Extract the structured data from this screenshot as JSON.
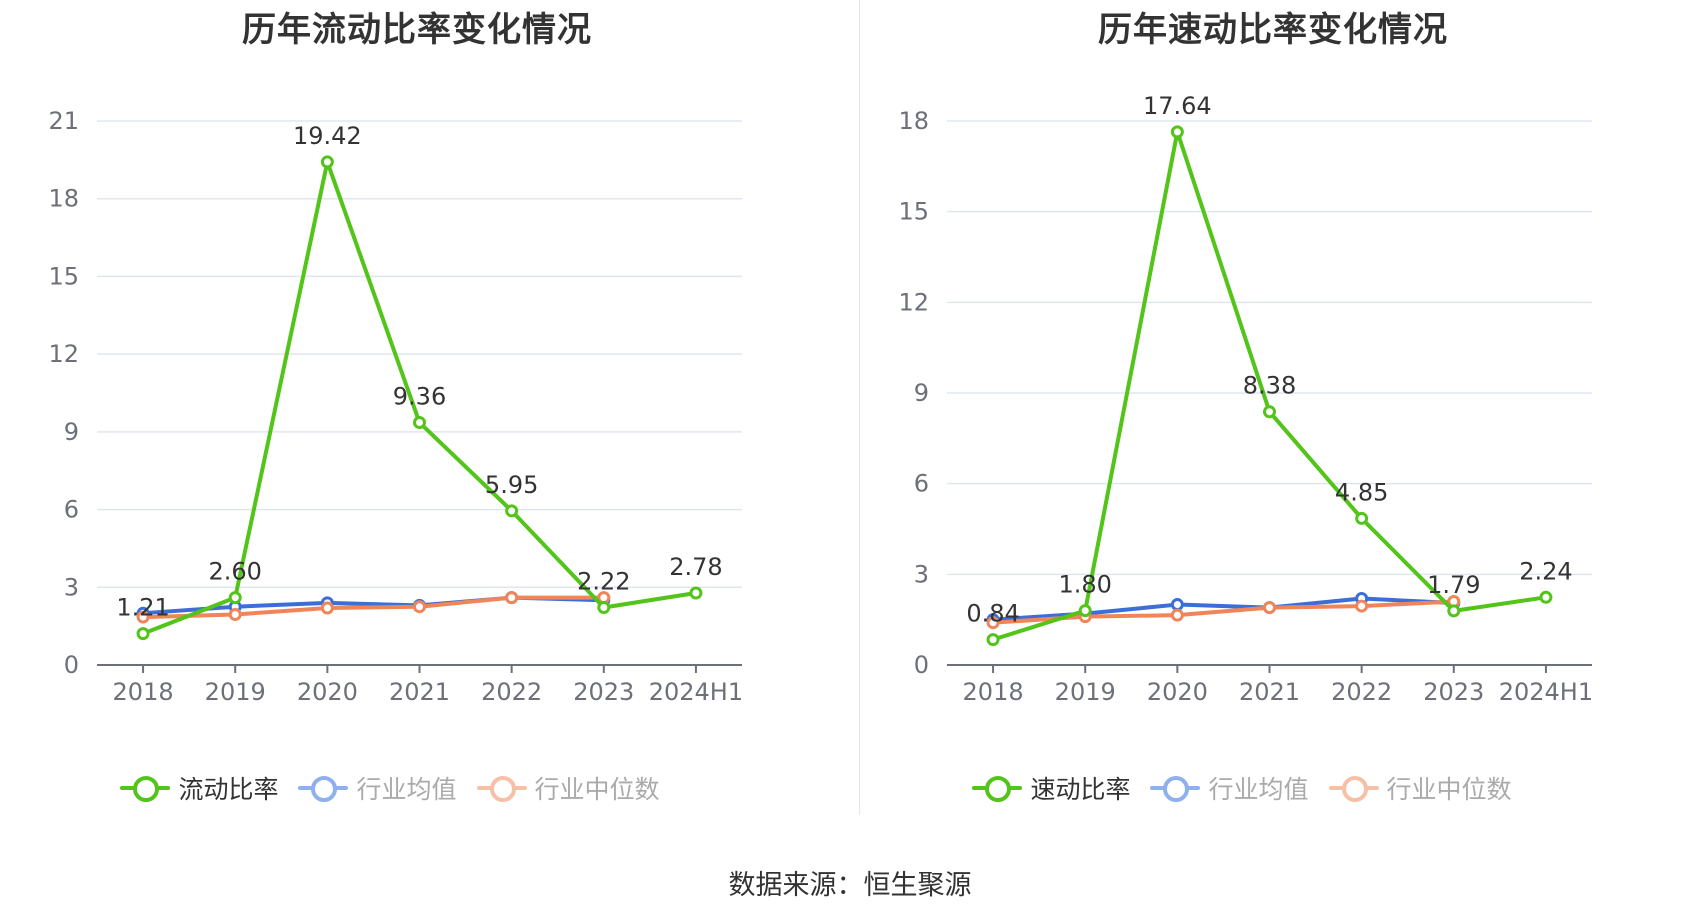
{
  "source": "数据来源：恒生聚源",
  "chart_data": [
    {
      "type": "line",
      "title": "历年流动比率变化情况",
      "categories": [
        "2018",
        "2019",
        "2020",
        "2021",
        "2022",
        "2023",
        "2024H1"
      ],
      "ylim": [
        0,
        21
      ],
      "yticks": [
        0,
        3,
        6,
        9,
        12,
        15,
        18,
        21
      ],
      "series": [
        {
          "name": "流动比率",
          "color": "#52c41a",
          "values": [
            1.21,
            2.6,
            19.42,
            9.36,
            5.95,
            2.22,
            2.78
          ],
          "labels": [
            "1.21",
            "2.60",
            "19.42",
            "9.36",
            "5.95",
            "2.22",
            "2.78"
          ]
        },
        {
          "name": "行业均值",
          "color": "#3c6ed8",
          "values": [
            2.0,
            2.25,
            2.4,
            2.3,
            2.6,
            2.5,
            null
          ]
        },
        {
          "name": "行业中位数",
          "color": "#f0855a",
          "values": [
            1.85,
            1.95,
            2.2,
            2.25,
            2.6,
            2.6,
            null
          ]
        }
      ],
      "legend": [
        {
          "name": "流动比率",
          "color": "#52c41a",
          "active": true
        },
        {
          "name": "行业均值",
          "color": "#8fb0ee",
          "active": false
        },
        {
          "name": "行业中位数",
          "color": "#f7bfa6",
          "active": false
        }
      ]
    },
    {
      "type": "line",
      "title": "历年速动比率变化情况",
      "categories": [
        "2018",
        "2019",
        "2020",
        "2021",
        "2022",
        "2023",
        "2024H1"
      ],
      "ylim": [
        0,
        18
      ],
      "yticks": [
        0,
        3,
        6,
        9,
        12,
        15,
        18
      ],
      "series": [
        {
          "name": "速动比率",
          "color": "#52c41a",
          "values": [
            0.84,
            1.8,
            17.64,
            8.38,
            4.85,
            1.79,
            2.24
          ],
          "labels": [
            "0.84",
            "1.80",
            "17.64",
            "8.38",
            "4.85",
            "1.79",
            "2.24"
          ]
        },
        {
          "name": "行业均值",
          "color": "#3c6ed8",
          "values": [
            1.5,
            1.7,
            2.0,
            1.9,
            2.2,
            2.05,
            null
          ]
        },
        {
          "name": "行业中位数",
          "color": "#f0855a",
          "values": [
            1.4,
            1.6,
            1.65,
            1.9,
            1.95,
            2.1,
            null
          ]
        }
      ],
      "legend": [
        {
          "name": "速动比率",
          "color": "#52c41a",
          "active": true
        },
        {
          "name": "行业均值",
          "color": "#8fb0ee",
          "active": false
        },
        {
          "name": "行业中位数",
          "color": "#f7bfa6",
          "active": false
        }
      ]
    }
  ]
}
